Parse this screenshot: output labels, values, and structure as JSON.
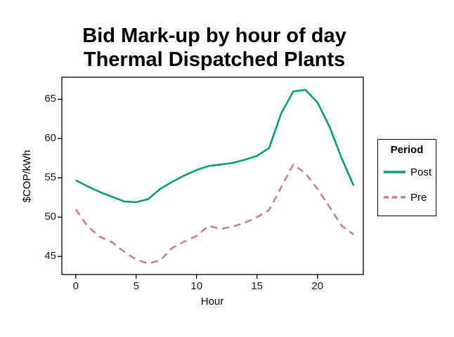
{
  "title": {
    "line1": "Bid Mark-up by hour of day",
    "line2": "Thermal Dispatched Plants"
  },
  "chart_data": {
    "type": "line",
    "title": "Bid Mark-up by hour of day Thermal Dispatched Plants",
    "xlabel": "Hour",
    "ylabel": "$COP/kWh",
    "x": [
      0,
      1,
      2,
      3,
      4,
      5,
      6,
      7,
      8,
      9,
      10,
      11,
      12,
      13,
      14,
      15,
      16,
      17,
      18,
      19,
      20,
      21,
      22,
      23
    ],
    "series": [
      {
        "name": "Post",
        "color": "#009E73",
        "style": "solid",
        "values": [
          54.7,
          53.9,
          53.2,
          52.6,
          52.0,
          51.9,
          52.3,
          53.6,
          54.5,
          55.3,
          56.0,
          56.5,
          56.7,
          56.9,
          57.3,
          57.8,
          58.8,
          63.2,
          66.0,
          66.2,
          64.6,
          61.5,
          57.5,
          54.0
        ]
      },
      {
        "name": "Pre",
        "color": "#CC79A7",
        "style": "dashed",
        "values": [
          51.0,
          48.8,
          47.5,
          46.8,
          45.6,
          44.6,
          44.1,
          44.5,
          46.1,
          46.9,
          47.6,
          48.9,
          48.5,
          48.8,
          49.3,
          50.0,
          50.9,
          53.8,
          56.7,
          55.6,
          53.6,
          51.3,
          48.9,
          47.8
        ]
      }
    ],
    "x_ticks": [
      0,
      5,
      10,
      15,
      20
    ],
    "y_ticks": [
      45,
      50,
      55,
      60,
      65
    ],
    "xlim": [
      -1.15,
      23.8
    ],
    "ylim": [
      42.7,
      67.8
    ],
    "grid": false,
    "legend": {
      "title": "Period",
      "position": "right",
      "entries": [
        "Post",
        "Pre"
      ]
    }
  }
}
